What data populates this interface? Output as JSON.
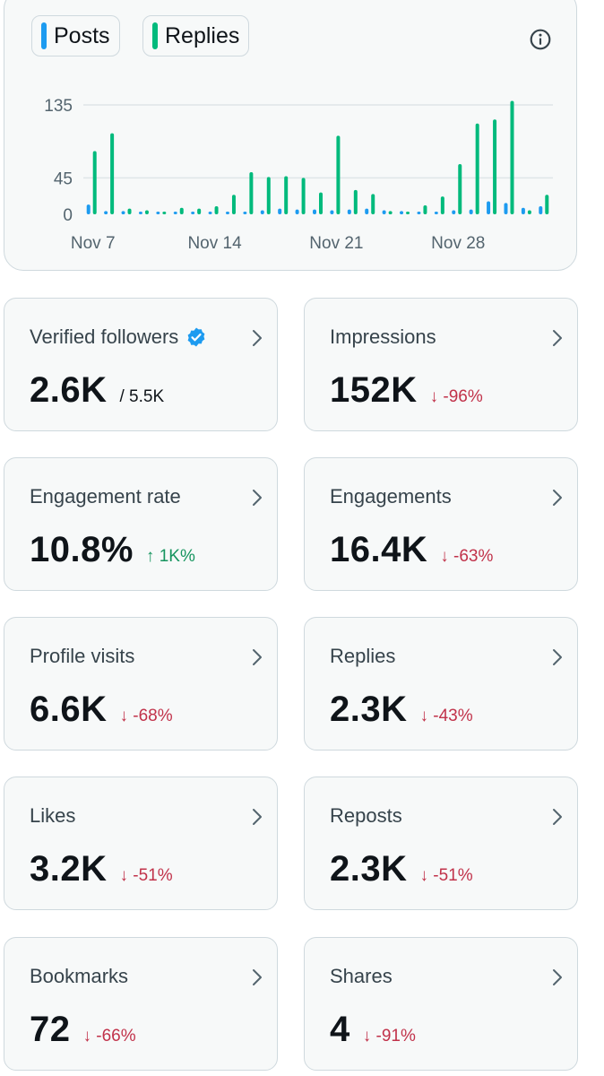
{
  "chart": {
    "legend": [
      {
        "label": "Posts",
        "color": "#1d9bf0"
      },
      {
        "label": "Replies",
        "color": "#00ba7c"
      }
    ],
    "info_icon": "info-icon"
  },
  "chart_data": {
    "type": "bar",
    "y_ticks": [
      0,
      45,
      135
    ],
    "x_tick_labels": [
      {
        "label": "Nov 7",
        "day": 0
      },
      {
        "label": "Nov 14",
        "day": 7
      },
      {
        "label": "Nov 21",
        "day": 14
      },
      {
        "label": "Nov 28",
        "day": 21
      }
    ],
    "series": [
      {
        "name": "Posts",
        "color": "#1d9bf0",
        "values": [
          12,
          4,
          4,
          3,
          2,
          2,
          2,
          2,
          2,
          3,
          5,
          7,
          6,
          6,
          5,
          6,
          7,
          5,
          4,
          3,
          3,
          5,
          6,
          16,
          14,
          8,
          10
        ]
      },
      {
        "name": "Replies",
        "color": "#00ba7c",
        "values": [
          78,
          100,
          7,
          5,
          2,
          8,
          7,
          10,
          24,
          52,
          46,
          47,
          45,
          27,
          97,
          30,
          25,
          4,
          2,
          11,
          22,
          62,
          112,
          117,
          140,
          5,
          24
        ]
      }
    ],
    "ylim": [
      0,
      135
    ]
  },
  "metrics": [
    {
      "label": "Verified followers",
      "verified": true,
      "value": "2.6K",
      "sub": "/ 5.5K",
      "change": "",
      "direction": ""
    },
    {
      "label": "Impressions",
      "value": "152K",
      "sub": "",
      "change": "↓ -96%",
      "direction": "down"
    },
    {
      "label": "Engagement rate",
      "value": "10.8%",
      "sub": "",
      "change": "↑ 1K%",
      "direction": "up"
    },
    {
      "label": "Engagements",
      "value": "16.4K",
      "sub": "",
      "change": "↓ -63%",
      "direction": "down"
    },
    {
      "label": "Profile visits",
      "value": "6.6K",
      "sub": "",
      "change": "↓ -68%",
      "direction": "down"
    },
    {
      "label": "Replies",
      "value": "2.3K",
      "sub": "",
      "change": "↓ -43%",
      "direction": "down"
    },
    {
      "label": "Likes",
      "value": "3.2K",
      "sub": "",
      "change": "↓ -51%",
      "direction": "down"
    },
    {
      "label": "Reposts",
      "value": "2.3K",
      "sub": "",
      "change": "↓ -51%",
      "direction": "down"
    },
    {
      "label": "Bookmarks",
      "value": "72",
      "sub": "",
      "change": "↓ -66%",
      "direction": "down"
    },
    {
      "label": "Shares",
      "value": "4",
      "sub": "",
      "change": "↓ -91%",
      "direction": "down"
    }
  ]
}
